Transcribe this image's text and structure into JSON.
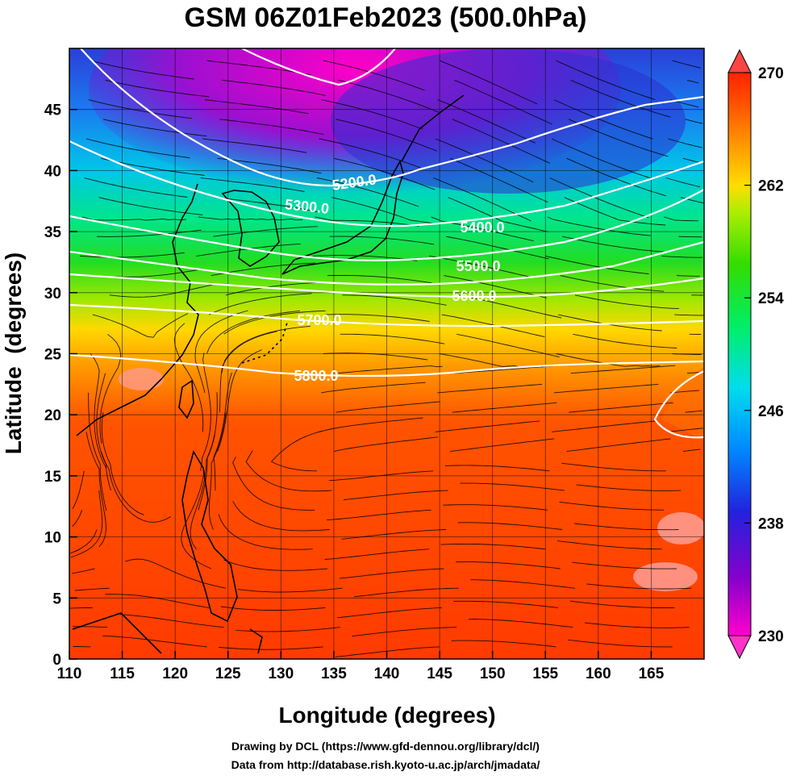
{
  "header": {
    "title": "GSM 06Z01Feb2023 (500.0hPa)"
  },
  "axes": {
    "xlabel": "Longitude (degrees)",
    "ylabel": "Latitude  (degrees)",
    "xlim": [
      110,
      170
    ],
    "ylim": [
      0,
      50
    ],
    "xticks": [
      "110",
      "115",
      "120",
      "125",
      "130",
      "135",
      "140",
      "145",
      "150",
      "155",
      "160",
      "165"
    ],
    "yticks": [
      "0",
      "5",
      "10",
      "15",
      "20",
      "25",
      "30",
      "35",
      "40",
      "45"
    ]
  },
  "colorbar": {
    "ticks": [
      "270",
      "262",
      "254",
      "246",
      "238",
      "230"
    ],
    "range": [
      230,
      270
    ],
    "colors": [
      "#ff00cc",
      "#8800cc",
      "#2222dd",
      "#0088ff",
      "#00ddee",
      "#00ee66",
      "#33dd00",
      "#aaee00",
      "#ffdd00",
      "#ff9900",
      "#ff5500",
      "#ff2200"
    ]
  },
  "contours": [
    {
      "label": "5200.0"
    },
    {
      "label": "5300.0"
    },
    {
      "label": "5400.0"
    },
    {
      "label": "5500.0"
    },
    {
      "label": "5600.0"
    },
    {
      "label": "5700.0"
    },
    {
      "label": "5800.0"
    }
  ],
  "footer": {
    "line1": "Drawing by DCL (https://www.gfd-dennou.org/library/dcl/)",
    "line2": "Data from http://database.rish.kyoto-u.ac.jp/arch/jmadata/"
  },
  "chart_data": {
    "type": "heatmap",
    "title": "GSM 06Z01Feb2023 (500.0hPa)",
    "xlabel": "Longitude (degrees)",
    "ylabel": "Latitude  (degrees)",
    "xlim": [
      110,
      170
    ],
    "ylim": [
      0,
      50
    ],
    "colorbar_range": [
      230,
      270
    ],
    "contour_levels": [
      5200,
      5300,
      5400,
      5500,
      5600,
      5700,
      5800
    ]
  }
}
